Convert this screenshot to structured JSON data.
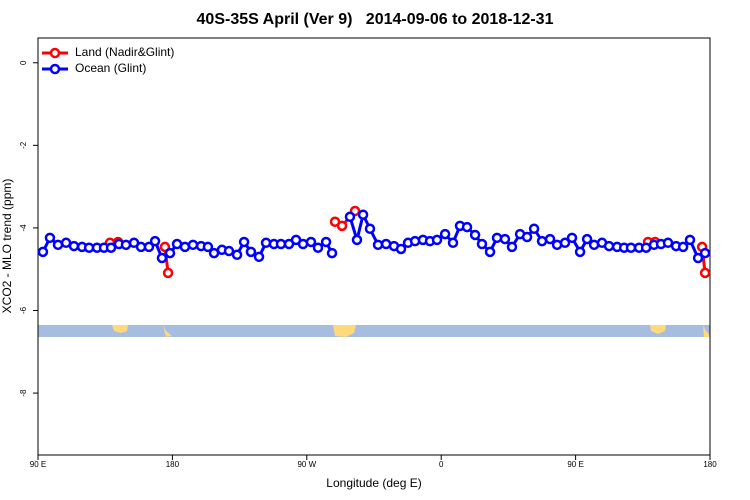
{
  "chart_data": {
    "type": "line",
    "title": "40S-35S April (Ver 9)   2014-09-06 to 2018-12-31",
    "xlabel": "Longitude (deg E)",
    "ylabel": "XCO2 - MLO trend (ppm)",
    "xlim": [
      90,
      540
    ],
    "ylim": [
      -9.5,
      0.6
    ],
    "xticks": [
      {
        "value": 90,
        "label": "90 E"
      },
      180,
      {
        "value": 270,
        "label": "90 W"
      },
      {
        "value": 360,
        "label": "0"
      },
      {
        "value": 450,
        "label": "90 E"
      },
      {
        "value": 540,
        "label": "180"
      }
    ],
    "yticks": [
      0,
      -2,
      -4,
      -6,
      -8
    ],
    "legend": "upper left",
    "series": [
      {
        "name": "Land (Nadir&Glint)",
        "color": "#ff0000",
        "x": [
          138.2,
          143.6,
          150,
          175.0,
          177.1,
          200,
          288.9,
          293.6,
          302.3,
          400,
          498.5,
          503.2,
          520,
          534.7,
          536.7
        ],
        "values": [
          -4.36,
          -4.34,
          null,
          -4.46,
          -5.09,
          null,
          -3.85,
          -3.95,
          -3.59,
          null,
          -4.34,
          -4.34,
          null,
          -4.46,
          -5.09
        ]
      },
      {
        "name": "Ocean (Glint)",
        "color": "#0000ff",
        "x": [
          93.3,
          98.0,
          103.4,
          108.8,
          114.1,
          119.5,
          124.2,
          129.5,
          134.2,
          138.9,
          144.2,
          148.9,
          154.3,
          159.0,
          164.3,
          168.4,
          173.0,
          178.4,
          183.1,
          188.4,
          193.8,
          199.2,
          203.8,
          207.9,
          213.2,
          217.9,
          223.3,
          228.0,
          232.6,
          238.0,
          242.7,
          248.0,
          252.7,
          258.1,
          262.8,
          267.5,
          272.8,
          277.5,
          282.9,
          286.9,
          290,
          298.9,
          303.6,
          307.7,
          312.3,
          317.7,
          323.1,
          328.4,
          333.1,
          337.8,
          342.5,
          347.8,
          352.5,
          357.2,
          362.6,
          367.9,
          372.6,
          377.3,
          382.7,
          387.3,
          392.7,
          397.4,
          402.7,
          407.4,
          412.8,
          417.5,
          422.2,
          427.5,
          432.9,
          437.6,
          442.9,
          447.6,
          453.0,
          457.7,
          462.4,
          467.7,
          472.4,
          477.8,
          482.5,
          487.1,
          492.5,
          497.2,
          502.5,
          507.2,
          511.9,
          517.3,
          522.0,
          526.6,
          532.0,
          536.7
        ],
        "values": [
          -4.58,
          -4.24,
          -4.41,
          -4.36,
          -4.44,
          -4.46,
          -4.48,
          -4.48,
          -4.48,
          -4.48,
          -4.39,
          -4.41,
          -4.36,
          -4.46,
          -4.46,
          -4.32,
          -4.73,
          -4.61,
          -4.39,
          -4.46,
          -4.41,
          -4.44,
          -4.46,
          -4.61,
          -4.53,
          -4.56,
          -4.65,
          -4.34,
          -4.58,
          -4.7,
          -4.36,
          -4.39,
          -4.39,
          -4.39,
          -4.29,
          -4.39,
          -4.34,
          -4.48,
          -4.34,
          -4.61,
          null,
          -3.73,
          -4.29,
          -3.68,
          -4.02,
          -4.41,
          -4.39,
          -4.44,
          -4.51,
          -4.36,
          -4.32,
          -4.29,
          -4.32,
          -4.29,
          -4.15,
          -4.36,
          -3.95,
          -3.98,
          -4.17,
          -4.39,
          -4.58,
          -4.24,
          -4.27,
          -4.46,
          -4.15,
          -4.22,
          -4.02,
          -4.32,
          -4.27,
          -4.41,
          -4.36,
          -4.24,
          -4.58,
          -4.27,
          -4.41,
          -4.36,
          -4.44,
          -4.46,
          -4.48,
          -4.48,
          -4.48,
          -4.48,
          -4.41,
          -4.39,
          -4.36,
          -4.44,
          -4.46,
          -4.29,
          -4.73,
          -4.61
        ]
      }
    ]
  }
}
